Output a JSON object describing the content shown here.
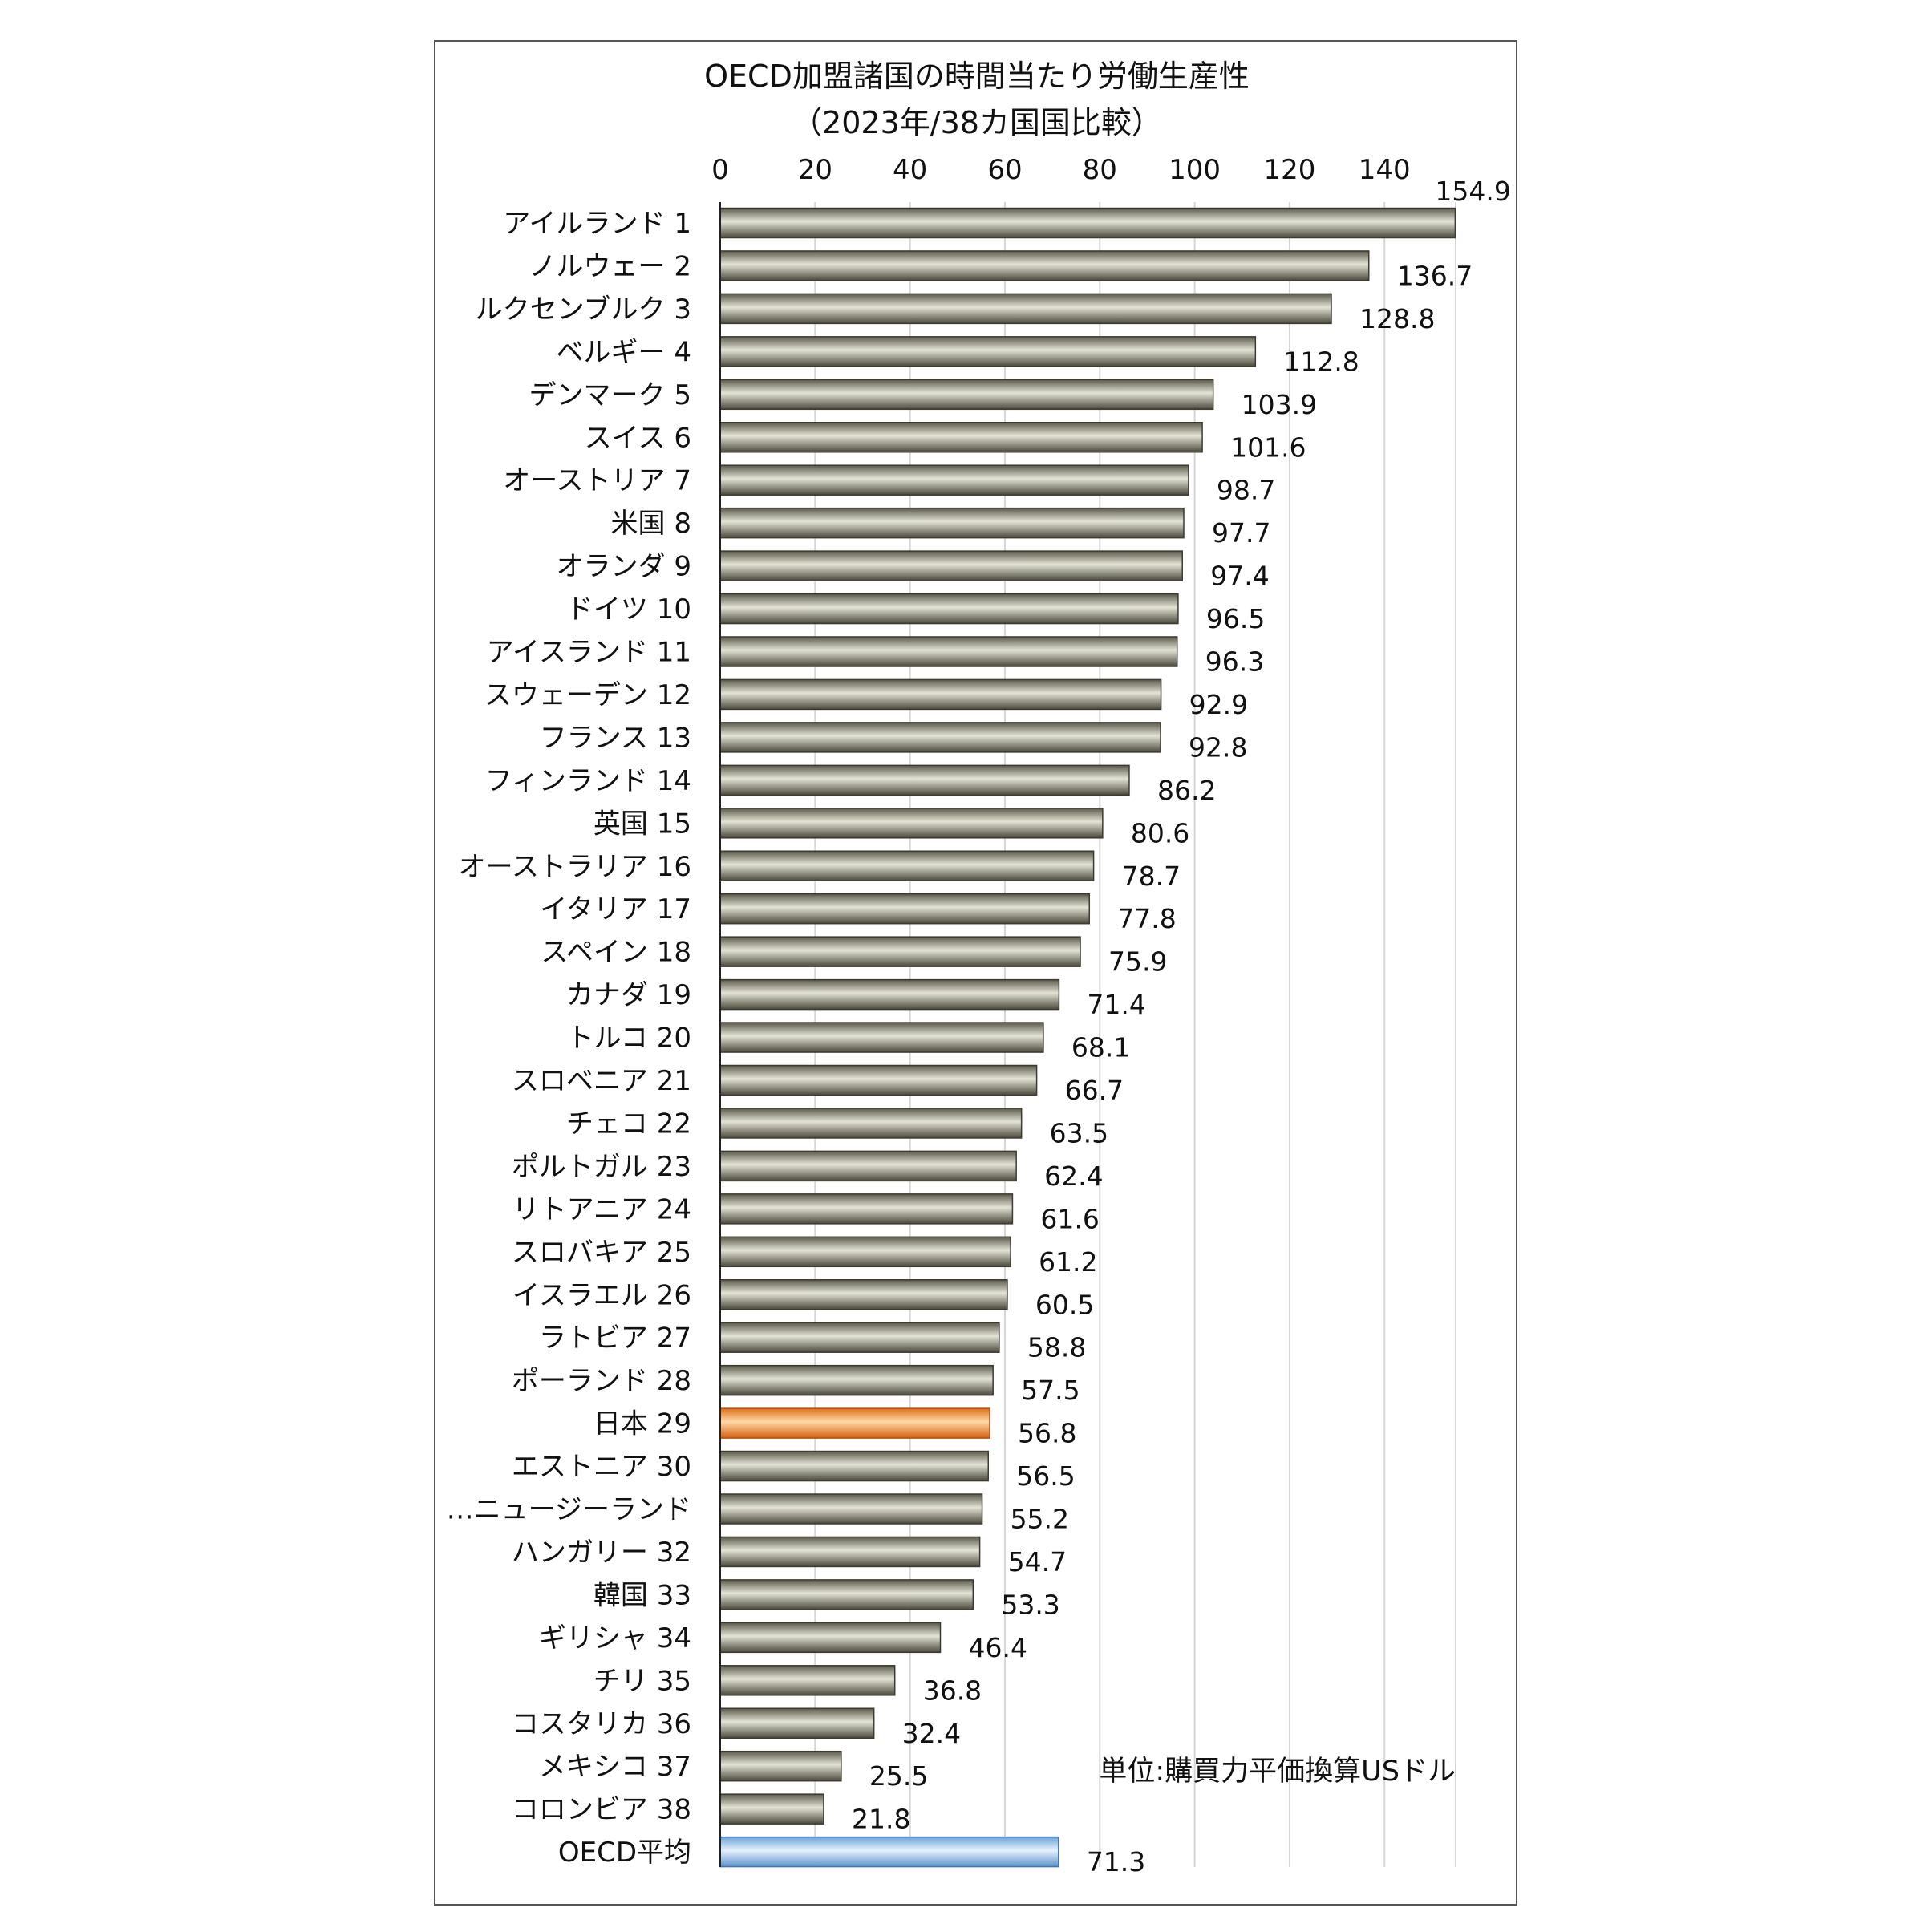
{
  "chart_data": {
    "type": "bar",
    "orientation": "horizontal",
    "title": "OECD加盟諸国の時間当たり労働生産性",
    "subtitle": "（2023年/38カ国国比較）",
    "unit_note": "単位:購買力平価換算USドル",
    "xlim": [
      0,
      155
    ],
    "x_ticks": [
      0,
      20,
      40,
      60,
      80,
      100,
      120,
      140
    ],
    "grid": true,
    "axis_position": "top",
    "colors": {
      "default_bar": "#6b6a58",
      "japan_bar": "#f08a28",
      "oecd_bar": "#9cc3ea",
      "grid": "#d6d6d6"
    },
    "categories": [
      "アイルランド 1",
      "ノルウェー 2",
      "ルクセンブルク 3",
      "ベルギー 4",
      "デンマーク 5",
      "スイス 6",
      "オーストリア 7",
      "米国 8",
      "オランダ 9",
      "ドイツ 10",
      "アイスランド 11",
      "スウェーデン 12",
      "フランス 13",
      "フィンランド 14",
      "英国 15",
      "オーストラリア 16",
      "イタリア 17",
      "スペイン 18",
      "カナダ 19",
      "トルコ 20",
      "スロベニア 21",
      "チェコ 22",
      "ポルトガル 23",
      "リトアニア 24",
      "スロバキア 25",
      "イスラエル 26",
      "ラトビア 27",
      "ポーランド 28",
      "日本 29",
      "エストニア 30",
      "…ニュージーランド",
      "ハンガリー 32",
      "韓国 33",
      "ギリシャ 34",
      "チリ 35",
      "コスタリカ 36",
      "メキシコ 37",
      "コロンビア 38",
      "OECD平均"
    ],
    "values": [
      154.9,
      136.7,
      128.8,
      112.8,
      103.9,
      101.6,
      98.7,
      97.7,
      97.4,
      96.5,
      96.3,
      92.9,
      92.8,
      86.2,
      80.6,
      78.7,
      77.8,
      75.9,
      71.4,
      68.1,
      66.7,
      63.5,
      62.4,
      61.6,
      61.2,
      60.5,
      58.8,
      57.5,
      56.8,
      56.5,
      55.2,
      54.7,
      53.3,
      46.4,
      36.8,
      32.4,
      25.5,
      21.8,
      71.3
    ],
    "value_labels": [
      "154.9",
      "136.7",
      "128.8",
      "112.8",
      "103.9",
      "101.6",
      "98.7",
      "97.7",
      "97.4",
      "96.5",
      "96.3",
      "92.9",
      "92.8",
      "86.2",
      "80.6",
      "78.7",
      "77.8",
      "75.9",
      "71.4",
      "68.1",
      "66.7",
      "63.5",
      "62.4",
      "61.6",
      "61.2",
      "60.5",
      "58.8",
      "57.5",
      "56.8",
      "56.5",
      "55.2",
      "54.7",
      "53.3",
      "46.4",
      "36.8",
      "32.4",
      "25.5",
      "21.8",
      "71.3"
    ],
    "highlight": {
      "japan_index": 28,
      "oecd_index": 38
    }
  }
}
